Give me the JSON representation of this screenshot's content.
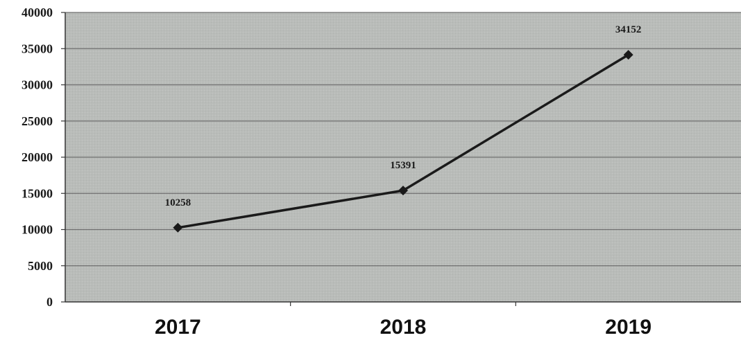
{
  "chart_data": {
    "type": "line",
    "title": "",
    "xlabel": "",
    "ylabel": "",
    "categories": [
      "2017",
      "2018",
      "2019"
    ],
    "series": [
      {
        "values": [
          10258,
          15391,
          34152
        ],
        "data_labels": [
          "10258",
          "15391",
          "34152"
        ],
        "color": "#1a1a1a",
        "marker": "diamond"
      }
    ],
    "ylim": [
      0,
      40000
    ],
    "yticks": [
      0,
      5000,
      10000,
      15000,
      20000,
      25000,
      30000,
      35000,
      40000
    ],
    "ytick_labels": [
      "0",
      "5000",
      "10000",
      "15000",
      "20000",
      "25000",
      "30000",
      "35000",
      "40000"
    ],
    "grid": true,
    "legend": "none",
    "plot_background": "#b9bcb9",
    "gridline_color": "#6f6f6f"
  }
}
